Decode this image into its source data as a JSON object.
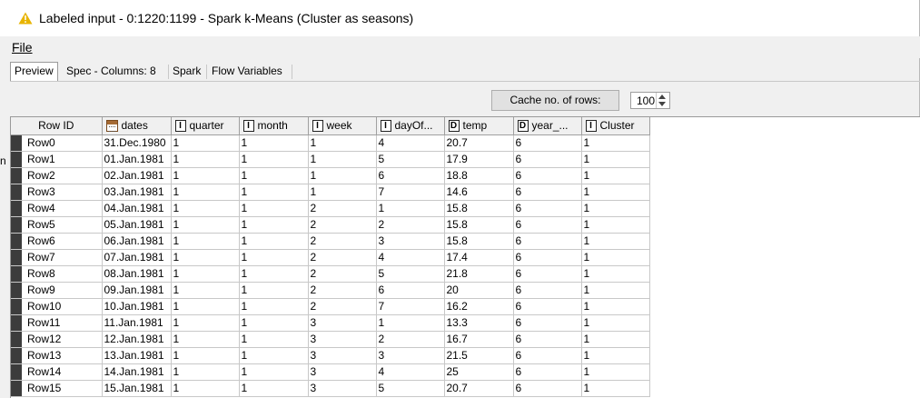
{
  "window": {
    "title": "Labeled input - 0:1220:1199 - Spark k-Means (Cluster as seasons)",
    "warning_icon": "warning-triangle-icon",
    "warning_color": "#e8b400"
  },
  "menu": {
    "file_label": "File"
  },
  "tabs": [
    {
      "label": "Preview",
      "active": true
    },
    {
      "label": "Spec - Columns: 8",
      "active": false
    },
    {
      "label": "Spark",
      "active": false
    },
    {
      "label": "Flow Variables",
      "active": false
    }
  ],
  "cache": {
    "button_label": "Cache no. of rows:",
    "value": "100"
  },
  "left_edge_text": "n",
  "table": {
    "columns": [
      {
        "label": "Row ID",
        "type": ""
      },
      {
        "label": "dates",
        "type": "date"
      },
      {
        "label": "quarter",
        "type": "I"
      },
      {
        "label": "month",
        "type": "I"
      },
      {
        "label": "week",
        "type": "I"
      },
      {
        "label": "dayOf...",
        "type": "I"
      },
      {
        "label": "temp",
        "type": "D"
      },
      {
        "label": "year_...",
        "type": "D"
      },
      {
        "label": "Cluster",
        "type": "I"
      }
    ],
    "rows": [
      [
        "Row0",
        "31.Dec.1980",
        "1",
        "1",
        "1",
        "4",
        "20.7",
        "6",
        "1"
      ],
      [
        "Row1",
        "01.Jan.1981",
        "1",
        "1",
        "1",
        "5",
        "17.9",
        "6",
        "1"
      ],
      [
        "Row2",
        "02.Jan.1981",
        "1",
        "1",
        "1",
        "6",
        "18.8",
        "6",
        "1"
      ],
      [
        "Row3",
        "03.Jan.1981",
        "1",
        "1",
        "1",
        "7",
        "14.6",
        "6",
        "1"
      ],
      [
        "Row4",
        "04.Jan.1981",
        "1",
        "1",
        "2",
        "1",
        "15.8",
        "6",
        "1"
      ],
      [
        "Row5",
        "05.Jan.1981",
        "1",
        "1",
        "2",
        "2",
        "15.8",
        "6",
        "1"
      ],
      [
        "Row6",
        "06.Jan.1981",
        "1",
        "1",
        "2",
        "3",
        "15.8",
        "6",
        "1"
      ],
      [
        "Row7",
        "07.Jan.1981",
        "1",
        "1",
        "2",
        "4",
        "17.4",
        "6",
        "1"
      ],
      [
        "Row8",
        "08.Jan.1981",
        "1",
        "1",
        "2",
        "5",
        "21.8",
        "6",
        "1"
      ],
      [
        "Row9",
        "09.Jan.1981",
        "1",
        "1",
        "2",
        "6",
        "20",
        "6",
        "1"
      ],
      [
        "Row10",
        "10.Jan.1981",
        "1",
        "1",
        "2",
        "7",
        "16.2",
        "6",
        "1"
      ],
      [
        "Row11",
        "11.Jan.1981",
        "1",
        "1",
        "3",
        "1",
        "13.3",
        "6",
        "1"
      ],
      [
        "Row12",
        "12.Jan.1981",
        "1",
        "1",
        "3",
        "2",
        "16.7",
        "6",
        "1"
      ],
      [
        "Row13",
        "13.Jan.1981",
        "1",
        "1",
        "3",
        "3",
        "21.5",
        "6",
        "1"
      ],
      [
        "Row14",
        "14.Jan.1981",
        "1",
        "1",
        "3",
        "4",
        "25",
        "6",
        "1"
      ],
      [
        "Row15",
        "15.Jan.1981",
        "1",
        "1",
        "3",
        "5",
        "20.7",
        "6",
        "1"
      ]
    ]
  }
}
